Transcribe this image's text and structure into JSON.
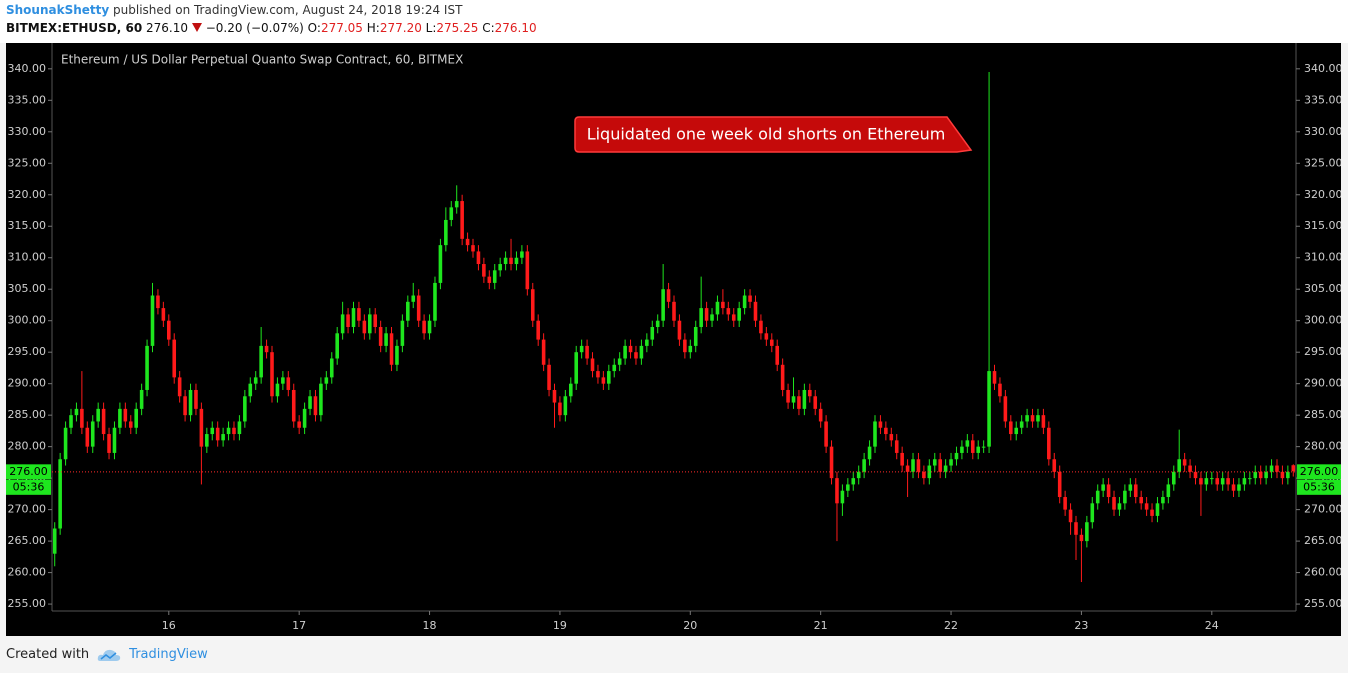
{
  "header": {
    "author": "ShounakShetty",
    "published": "published on TradingView.com, August 24, 2018 19:24 IST",
    "symbol": "BITMEX:ETHUSD, 60",
    "last": "276.10",
    "change": "−0.20 (−0.07%)",
    "ohlc": [
      {
        "label": "O:",
        "value": "277.05"
      },
      {
        "label": "H:",
        "value": "277.20"
      },
      {
        "label": "L:",
        "value": "275.25"
      },
      {
        "label": "C:",
        "value": "276.10"
      }
    ]
  },
  "chart_data": {
    "type": "candlestick",
    "title": "Ethereum / US Dollar Perpetual Quanto Swap Contract, 60, BITMEX",
    "annotation": "Liquidated one week old shorts on Ethereum",
    "up_color": "#1ee61e",
    "down_color": "#ff1a1a",
    "price_line_color": "#ff2a2a",
    "last_price": {
      "value": 276,
      "label": "276.00"
    },
    "countdown": "05:36",
    "ylim": [
      253.9,
      344.1
    ],
    "yticks": [
      {
        "value": 255,
        "label": "255.00"
      },
      {
        "value": 260,
        "label": "260.00"
      },
      {
        "value": 265,
        "label": "265.00"
      },
      {
        "value": 270,
        "label": "270.00"
      },
      {
        "value": 275,
        "label": "275.00"
      },
      {
        "value": 280,
        "label": "280.00"
      },
      {
        "value": 285,
        "label": "285.00"
      },
      {
        "value": 290,
        "label": "290.00"
      },
      {
        "value": 295,
        "label": "295.00"
      },
      {
        "value": 300,
        "label": "300.00"
      },
      {
        "value": 305,
        "label": "305.00"
      },
      {
        "value": 310,
        "label": "310.00"
      },
      {
        "value": 315,
        "label": "315.00"
      },
      {
        "value": 320,
        "label": "320.00"
      },
      {
        "value": 325,
        "label": "325.00"
      },
      {
        "value": 330,
        "label": "330.00"
      },
      {
        "value": 335,
        "label": "335.00"
      },
      {
        "value": 340,
        "label": "340.00"
      }
    ],
    "categories": [
      null,
      null,
      null,
      null,
      null,
      null,
      null,
      null,
      null,
      null,
      null,
      null,
      null,
      null,
      null,
      null,
      null,
      null,
      null,
      null,
      null,
      "16",
      null,
      null,
      null,
      null,
      null,
      null,
      null,
      null,
      null,
      null,
      null,
      null,
      null,
      null,
      null,
      null,
      null,
      null,
      null,
      null,
      null,
      null,
      null,
      "17",
      null,
      null,
      null,
      null,
      null,
      null,
      null,
      null,
      null,
      null,
      null,
      null,
      null,
      null,
      null,
      null,
      null,
      null,
      null,
      null,
      null,
      null,
      null,
      "18",
      null,
      null,
      null,
      null,
      null,
      null,
      null,
      null,
      null,
      null,
      null,
      null,
      null,
      null,
      null,
      null,
      null,
      null,
      null,
      null,
      null,
      null,
      null,
      "19",
      null,
      null,
      null,
      null,
      null,
      null,
      null,
      null,
      null,
      null,
      null,
      null,
      null,
      null,
      null,
      null,
      null,
      null,
      null,
      null,
      null,
      null,
      null,
      "20",
      null,
      null,
      null,
      null,
      null,
      null,
      null,
      null,
      null,
      null,
      null,
      null,
      null,
      null,
      null,
      null,
      null,
      null,
      null,
      null,
      null,
      null,
      null,
      "21",
      null,
      null,
      null,
      null,
      null,
      null,
      null,
      null,
      null,
      null,
      null,
      null,
      null,
      null,
      null,
      null,
      null,
      null,
      null,
      null,
      null,
      null,
      null,
      "22",
      null,
      null,
      null,
      null,
      null,
      null,
      null,
      null,
      null,
      null,
      null,
      null,
      null,
      null,
      null,
      null,
      null,
      null,
      null,
      null,
      null,
      null,
      null,
      "23",
      null,
      null,
      null,
      null,
      null,
      null,
      null,
      null,
      null,
      null,
      null,
      null,
      null,
      null,
      null,
      null,
      null,
      null,
      null,
      null,
      null,
      null,
      null,
      "24",
      null,
      null,
      null,
      null,
      null,
      null,
      null,
      null,
      null,
      null,
      null,
      null,
      null,
      null,
      null
    ],
    "open": [
      263,
      267,
      278,
      283,
      285,
      286,
      283,
      280,
      284,
      286,
      282,
      279,
      283,
      286,
      284,
      283,
      286,
      289,
      296,
      304,
      302,
      300,
      297,
      291,
      288,
      285,
      289,
      286,
      280,
      282,
      283,
      281,
      282,
      283,
      282,
      284,
      288,
      290,
      291,
      296,
      295,
      288,
      290,
      291,
      289,
      284,
      283,
      286,
      288,
      285,
      290,
      291,
      294,
      298,
      301,
      299,
      302,
      300,
      298,
      301,
      299,
      296,
      298,
      293,
      296,
      300,
      303,
      304,
      300,
      298,
      300,
      306,
      312,
      316,
      318,
      319,
      313,
      312,
      311,
      309,
      307,
      306,
      308,
      309,
      310,
      309,
      310,
      311,
      305,
      300,
      297,
      293,
      289,
      287,
      285,
      288,
      290,
      295,
      296,
      294,
      292,
      291,
      290,
      292,
      293,
      294,
      296,
      295,
      294,
      296,
      297,
      299,
      300,
      305,
      303,
      300,
      297,
      295,
      296,
      299,
      302,
      300,
      301,
      303,
      302,
      301,
      300,
      302,
      304,
      303,
      300,
      298,
      297,
      296,
      293,
      289,
      287,
      288,
      286,
      289,
      288,
      286,
      284,
      280,
      275,
      271,
      273,
      274,
      275,
      276,
      278,
      280,
      284,
      283,
      282,
      281,
      279,
      277,
      276,
      278,
      276,
      275,
      277,
      278,
      276,
      277,
      278,
      279,
      280,
      281,
      279,
      280,
      280,
      292,
      290,
      288,
      284,
      282,
      283,
      284,
      285,
      284,
      285,
      283,
      278,
      276,
      272,
      270,
      268,
      266,
      265,
      268,
      271,
      273,
      274,
      272,
      270,
      271,
      273,
      274,
      272,
      271,
      270,
      269,
      271,
      272,
      274,
      276,
      278,
      277,
      276,
      275,
      274,
      275,
      275,
      274,
      275,
      274,
      273,
      274,
      275,
      275,
      276,
      275,
      276,
      277,
      276,
      275,
      277.05
    ],
    "high": [
      268,
      279,
      284,
      286,
      287,
      292,
      284,
      285,
      287,
      287,
      283,
      284,
      287,
      287,
      285,
      287,
      290,
      297,
      306,
      305,
      303,
      301,
      298,
      292,
      289,
      290,
      290,
      287,
      283,
      284,
      284,
      283,
      284,
      284,
      285,
      289,
      291,
      292,
      299,
      297,
      296,
      291,
      292,
      292,
      290,
      285,
      287,
      289,
      289,
      291,
      292,
      295,
      299,
      303,
      302,
      303,
      303,
      301,
      302,
      302,
      300,
      299,
      299,
      297,
      301,
      304,
      306,
      305,
      301,
      301,
      307,
      313,
      318,
      319,
      321.5,
      320,
      314,
      313,
      312,
      310,
      308,
      309,
      310,
      311,
      313,
      311,
      312,
      312,
      306,
      301,
      298,
      294,
      290,
      288,
      289,
      291,
      296,
      297,
      297,
      295,
      293,
      292,
      293,
      294,
      295,
      297,
      297,
      296,
      297,
      298,
      300,
      301,
      309,
      306,
      304,
      301,
      298,
      297,
      300,
      307,
      303,
      302,
      304,
      305,
      303,
      302,
      303,
      305,
      305,
      304,
      301,
      299,
      298,
      297,
      294,
      290,
      291,
      289,
      290,
      290,
      289,
      287,
      285,
      281,
      276,
      274,
      275,
      276,
      277,
      279,
      281,
      285,
      285,
      284,
      283,
      282,
      280,
      278,
      279,
      279,
      277,
      278,
      279,
      279,
      278,
      279,
      280,
      281,
      282,
      282,
      281,
      281,
      339.5,
      293,
      291,
      289,
      285,
      284,
      285,
      286,
      286,
      286,
      286,
      284,
      279,
      277,
      273,
      271,
      269,
      267,
      269,
      272,
      274,
      275,
      275,
      273,
      272,
      274,
      275,
      275,
      273,
      272,
      271,
      272,
      273,
      275,
      277,
      282.7,
      279,
      278,
      277,
      276,
      276,
      276,
      276,
      276,
      276,
      275,
      275,
      276,
      276,
      277,
      277,
      277,
      278,
      278,
      277,
      277,
      277.2
    ],
    "low": [
      261,
      266,
      277,
      282,
      284,
      282,
      279,
      279,
      283,
      281,
      278,
      278,
      282,
      283,
      282,
      282,
      285,
      288,
      295,
      301,
      299,
      296,
      290,
      287,
      284,
      284,
      285,
      274,
      279,
      281,
      280,
      280,
      281,
      281,
      281,
      283,
      287,
      289,
      290,
      294,
      287,
      287,
      289,
      288,
      283,
      282,
      282,
      285,
      284,
      284,
      289,
      290,
      293,
      297,
      298,
      298,
      299,
      297,
      297,
      298,
      295,
      295,
      292,
      292,
      295,
      299,
      302,
      299,
      297,
      297,
      299,
      305,
      311,
      315,
      317,
      312,
      311,
      310,
      308,
      306,
      305,
      305,
      307,
      308,
      308,
      308,
      309,
      304,
      299,
      296,
      292,
      288,
      283,
      284,
      284,
      287,
      289,
      294,
      293,
      291,
      290,
      289,
      289,
      291,
      292,
      293,
      294,
      293,
      293,
      295,
      296,
      298,
      299,
      302,
      299,
      296,
      294,
      294,
      295,
      298,
      299,
      299,
      300,
      301,
      300,
      299,
      299,
      301,
      302,
      299,
      297,
      296,
      295,
      292,
      288,
      286,
      286,
      285,
      285,
      287,
      285,
      283,
      279,
      274,
      265,
      269,
      272,
      273,
      274,
      275,
      277,
      279,
      282,
      281,
      280,
      278,
      276,
      272,
      275,
      275,
      274,
      274,
      276,
      275,
      275,
      276,
      277,
      278,
      279,
      278,
      278,
      279,
      279,
      289,
      287,
      283,
      281,
      281,
      282,
      283,
      283,
      283,
      282,
      277,
      275,
      271,
      269,
      266,
      262,
      258.5,
      264,
      267,
      270,
      272,
      271,
      269,
      269,
      270,
      272,
      271,
      270,
      269,
      268,
      268,
      270,
      271,
      273,
      275,
      276,
      275,
      274,
      269,
      273,
      274,
      273,
      273,
      273,
      272,
      272,
      273,
      274,
      274,
      274,
      274,
      275,
      275,
      274,
      274,
      275.25
    ],
    "close": [
      267,
      278,
      283,
      285,
      286,
      283,
      280,
      284,
      286,
      282,
      279,
      283,
      286,
      284,
      283,
      286,
      289,
      296,
      304,
      302,
      300,
      297,
      291,
      288,
      285,
      289,
      286,
      280,
      282,
      283,
      281,
      282,
      283,
      282,
      284,
      288,
      290,
      291,
      296,
      295,
      288,
      290,
      291,
      289,
      284,
      283,
      286,
      288,
      285,
      290,
      291,
      294,
      298,
      301,
      299,
      302,
      300,
      298,
      301,
      299,
      296,
      298,
      293,
      296,
      300,
      303,
      304,
      300,
      298,
      300,
      306,
      312,
      316,
      318,
      319,
      313,
      312,
      311,
      309,
      307,
      306,
      308,
      309,
      310,
      309,
      310,
      311,
      305,
      300,
      297,
      293,
      289,
      287,
      285,
      288,
      290,
      295,
      296,
      294,
      292,
      291,
      290,
      292,
      293,
      294,
      296,
      295,
      294,
      296,
      297,
      299,
      300,
      305,
      303,
      300,
      297,
      295,
      296,
      299,
      302,
      300,
      301,
      303,
      302,
      301,
      300,
      302,
      304,
      303,
      300,
      298,
      297,
      296,
      293,
      289,
      287,
      288,
      286,
      289,
      288,
      286,
      284,
      280,
      275,
      271,
      273,
      274,
      275,
      276,
      278,
      280,
      284,
      283,
      282,
      281,
      279,
      277,
      276,
      278,
      276,
      275,
      277,
      278,
      276,
      277,
      278,
      279,
      280,
      281,
      279,
      280,
      280,
      292,
      290,
      288,
      284,
      282,
      283,
      284,
      285,
      284,
      285,
      283,
      278,
      276,
      272,
      270,
      268,
      266,
      265,
      268,
      271,
      273,
      274,
      272,
      270,
      271,
      273,
      274,
      272,
      271,
      270,
      269,
      271,
      272,
      274,
      276,
      278,
      277,
      276,
      275,
      274,
      275,
      275,
      274,
      275,
      274,
      273,
      274,
      275,
      275,
      276,
      275,
      276,
      277,
      276,
      275,
      276,
      276.1
    ]
  },
  "footer": {
    "created": "Created with",
    "brand": "TradingView"
  }
}
